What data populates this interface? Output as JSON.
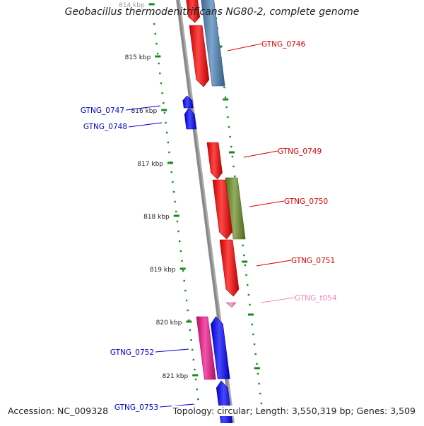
{
  "title": "Geobacillus thermodenitrificans NG80-2, complete genome",
  "footer": {
    "accession": "Accession: NC_009328",
    "summary": "Topology: circular; Length: 3,550,319 bp; Genes: 3,509"
  },
  "colors": {
    "backbone": "#888888",
    "ticks": "#1a8a1a",
    "label_blue": "#0000cc",
    "label_red": "#dd0000",
    "label_pink": "#ee88bb",
    "gene_red": "#ff0000",
    "gene_blue": "#0000ff",
    "gene_steel": "#4a82b8",
    "gene_olive": "#6b8e23",
    "gene_magenta": "#ee1188",
    "gene_pink": "#ff88cc"
  },
  "kbp_labels": [
    "814 kbp",
    "815 kbp",
    "816 kbp",
    "817 kbp",
    "818 kbp",
    "819 kbp",
    "820 kbp",
    "821 kbp"
  ],
  "genes": [
    {
      "label": "GTNG_0746",
      "side": "right",
      "color_key": "gene_steel",
      "label_color": "label_red"
    },
    {
      "label": "GTNG_0747",
      "side": "left",
      "color_key": "gene_blue",
      "label_color": "label_blue"
    },
    {
      "label": "GTNG_0748",
      "side": "left",
      "color_key": "gene_blue",
      "label_color": "label_blue"
    },
    {
      "label": "GTNG_0749",
      "side": "right",
      "color_key": "gene_red",
      "label_color": "label_red"
    },
    {
      "label": "GTNG_0750",
      "side": "right",
      "color_key": "gene_olive",
      "label_color": "label_red"
    },
    {
      "label": "GTNG_0751",
      "side": "right",
      "color_key": "gene_red",
      "label_color": "label_red"
    },
    {
      "label": "GTNG_t054",
      "side": "right",
      "color_key": "gene_pink",
      "label_color": "label_pink"
    },
    {
      "label": "GTNG_0752",
      "side": "left",
      "color_key": "gene_magenta",
      "label_color": "label_blue"
    },
    {
      "label": "GTNG_0753",
      "side": "left",
      "color_key": "gene_blue",
      "label_color": "label_blue"
    }
  ]
}
